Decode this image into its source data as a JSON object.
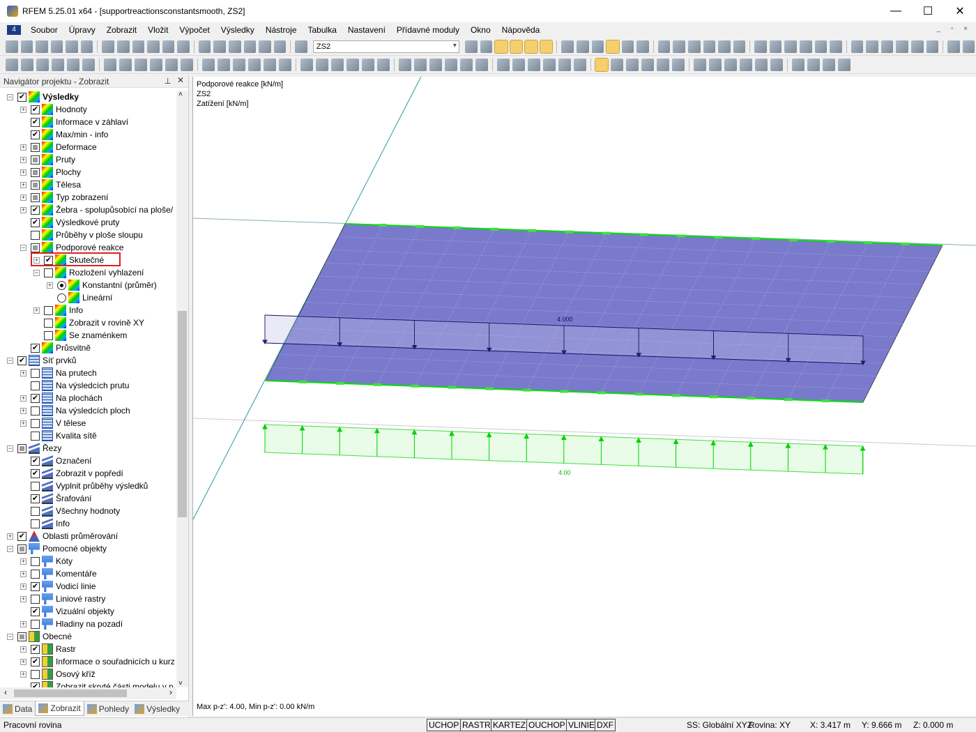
{
  "window": {
    "title": "RFEM 5.25.01 x64 - [supportreactionsconstantsmooth, ZS2]",
    "controls": [
      "minimize",
      "maximize",
      "close"
    ]
  },
  "menu": [
    "Soubor",
    "Úpravy",
    "Zobrazit",
    "Vložit",
    "Výpočet",
    "Výsledky",
    "Nástroje",
    "Tabulka",
    "Nastavení",
    "Přídavné moduly",
    "Okno",
    "Nápověda"
  ],
  "toolbar": {
    "load_case_combo": "ZS2"
  },
  "navigator": {
    "title": "Navigátor projektu - Zobrazit",
    "items": [
      {
        "label": "Výsledky",
        "level": 0,
        "state": "checked",
        "exp": "-",
        "icon": "results",
        "bold": true
      },
      {
        "label": "Hodnoty",
        "level": 1,
        "state": "checked",
        "exp": "+",
        "icon": "results"
      },
      {
        "label": "Informace v záhlaví",
        "level": 1,
        "state": "checked",
        "exp": "",
        "icon": "results"
      },
      {
        "label": "Max/min - info",
        "level": 1,
        "state": "checked",
        "exp": "",
        "icon": "results"
      },
      {
        "label": "Deformace",
        "level": 1,
        "state": "partial",
        "exp": "+",
        "icon": "results"
      },
      {
        "label": "Pruty",
        "level": 1,
        "state": "partial",
        "exp": "+",
        "icon": "results"
      },
      {
        "label": "Plochy",
        "level": 1,
        "state": "partial",
        "exp": "+",
        "icon": "results"
      },
      {
        "label": "Tělesa",
        "level": 1,
        "state": "partial",
        "exp": "+",
        "icon": "results"
      },
      {
        "label": "Typ zobrazení",
        "level": 1,
        "state": "partial",
        "exp": "+",
        "icon": "results"
      },
      {
        "label": "Žebra - spolupůsobící na ploše/",
        "level": 1,
        "state": "checked",
        "exp": "+",
        "icon": "results"
      },
      {
        "label": "Výsledkové pruty",
        "level": 1,
        "state": "checked",
        "exp": "",
        "icon": "results"
      },
      {
        "label": "Průběhy v ploše sloupu",
        "level": 1,
        "state": "unchecked",
        "exp": "",
        "icon": "results"
      },
      {
        "label": "Podporové reakce",
        "level": 1,
        "state": "partial",
        "exp": "-",
        "icon": "results"
      },
      {
        "label": "Skutečné",
        "level": 2,
        "state": "checked",
        "exp": "+",
        "icon": "results"
      },
      {
        "label": "Rozložení vyhlazení",
        "level": 2,
        "state": "unchecked",
        "exp": "-",
        "icon": "results"
      },
      {
        "label": "Konstantní (průměr)",
        "level": 3,
        "state": "radio-on",
        "exp": "+",
        "icon": "results"
      },
      {
        "label": "Lineární",
        "level": 3,
        "state": "radio-off",
        "exp": "",
        "icon": "results"
      },
      {
        "label": "Info",
        "level": 2,
        "state": "unchecked",
        "exp": "+",
        "icon": "results"
      },
      {
        "label": "Zobrazit v rovině XY",
        "level": 2,
        "state": "unchecked",
        "exp": "",
        "icon": "results"
      },
      {
        "label": "Se znaménkem",
        "level": 2,
        "state": "unchecked",
        "exp": "",
        "icon": "results"
      },
      {
        "label": "Průsvitně",
        "level": 1,
        "state": "checked",
        "exp": "",
        "icon": "results"
      },
      {
        "label": "Síť prvků",
        "level": 0,
        "state": "checked",
        "exp": "-",
        "icon": "mesh"
      },
      {
        "label": "Na prutech",
        "level": 1,
        "state": "unchecked",
        "exp": "+",
        "icon": "mesh"
      },
      {
        "label": "Na výsledcích prutu",
        "level": 1,
        "state": "unchecked",
        "exp": "",
        "icon": "mesh"
      },
      {
        "label": "Na plochách",
        "level": 1,
        "state": "checked",
        "exp": "+",
        "icon": "mesh"
      },
      {
        "label": "Na výsledcích ploch",
        "level": 1,
        "state": "unchecked",
        "exp": "+",
        "icon": "mesh"
      },
      {
        "label": "V tělese",
        "level": 1,
        "state": "unchecked",
        "exp": "+",
        "icon": "mesh"
      },
      {
        "label": "Kvalita sítě",
        "level": 1,
        "state": "unchecked",
        "exp": "",
        "icon": "mesh"
      },
      {
        "label": "Řezy",
        "level": 0,
        "state": "partial",
        "exp": "-",
        "icon": "sect"
      },
      {
        "label": "Označení",
        "level": 1,
        "state": "checked",
        "exp": "",
        "icon": "sect"
      },
      {
        "label": "Zobrazit v popředí",
        "level": 1,
        "state": "checked",
        "exp": "",
        "icon": "sect"
      },
      {
        "label": "Vyplnit průběhy výsledků",
        "level": 1,
        "state": "unchecked",
        "exp": "",
        "icon": "sect"
      },
      {
        "label": "Šrafování",
        "level": 1,
        "state": "checked",
        "exp": "",
        "icon": "sect"
      },
      {
        "label": "Všechny hodnoty",
        "level": 1,
        "state": "unchecked",
        "exp": "",
        "icon": "sect"
      },
      {
        "label": "Info",
        "level": 1,
        "state": "unchecked",
        "exp": "",
        "icon": "sect"
      },
      {
        "label": "Oblasti průměrování",
        "level": 0,
        "state": "checked",
        "exp": "+",
        "icon": "avg"
      },
      {
        "label": "Pomocné objekty",
        "level": 0,
        "state": "partial",
        "exp": "-",
        "icon": "help"
      },
      {
        "label": "Kóty",
        "level": 1,
        "state": "unchecked",
        "exp": "+",
        "icon": "help"
      },
      {
        "label": "Komentáře",
        "level": 1,
        "state": "unchecked",
        "exp": "+",
        "icon": "help"
      },
      {
        "label": "Vodicí linie",
        "level": 1,
        "state": "checked",
        "exp": "+",
        "icon": "help"
      },
      {
        "label": "Liniové rastry",
        "level": 1,
        "state": "unchecked",
        "exp": "+",
        "icon": "help"
      },
      {
        "label": "Vizuální objekty",
        "level": 1,
        "state": "checked",
        "exp": "",
        "icon": "help"
      },
      {
        "label": "Hladiny na pozadí",
        "level": 1,
        "state": "unchecked",
        "exp": "+",
        "icon": "help"
      },
      {
        "label": "Obecné",
        "level": 0,
        "state": "partial",
        "exp": "-",
        "icon": "gen"
      },
      {
        "label": "Rastr",
        "level": 1,
        "state": "checked",
        "exp": "+",
        "icon": "gen"
      },
      {
        "label": "Informace o souřadnicích u kurz",
        "level": 1,
        "state": "checked",
        "exp": "+",
        "icon": "gen"
      },
      {
        "label": "Osový kříž",
        "level": 1,
        "state": "unchecked",
        "exp": "+",
        "icon": "gen"
      },
      {
        "label": "Zobrazit skryté části modelu v p",
        "level": 1,
        "state": "checked",
        "exp": "",
        "icon": "gen"
      }
    ],
    "highlighted_item": "Skutečné",
    "tabs": [
      "Data",
      "Zobrazit",
      "Pohledy",
      "Výsledky"
    ],
    "active_tab": "Zobrazit"
  },
  "viewport": {
    "header": [
      "Podporové reakce [kN/m]",
      "ZS2",
      "Zatížení [kN/m]"
    ],
    "load_value": "4.000",
    "reaction_value": "4.00",
    "footer": "Max p-z': 4.00, Min p-z': 0.00 kN/m",
    "colors": {
      "plate": "#6b6bc8",
      "load": "#1a1a80",
      "reaction": "#00e000"
    }
  },
  "statusbar": {
    "left": "Pracovní rovina",
    "toggles": [
      "UCHOP",
      "RASTR",
      "KARTEZ",
      "OUCHOP",
      "VLINIE",
      "DXF"
    ],
    "cs": "SS: Globální XYZ",
    "plane": "Rovina: XY",
    "x": "X: 3.417 m",
    "y": "Y: 9.666 m",
    "z": "Z: 0.000 m"
  }
}
